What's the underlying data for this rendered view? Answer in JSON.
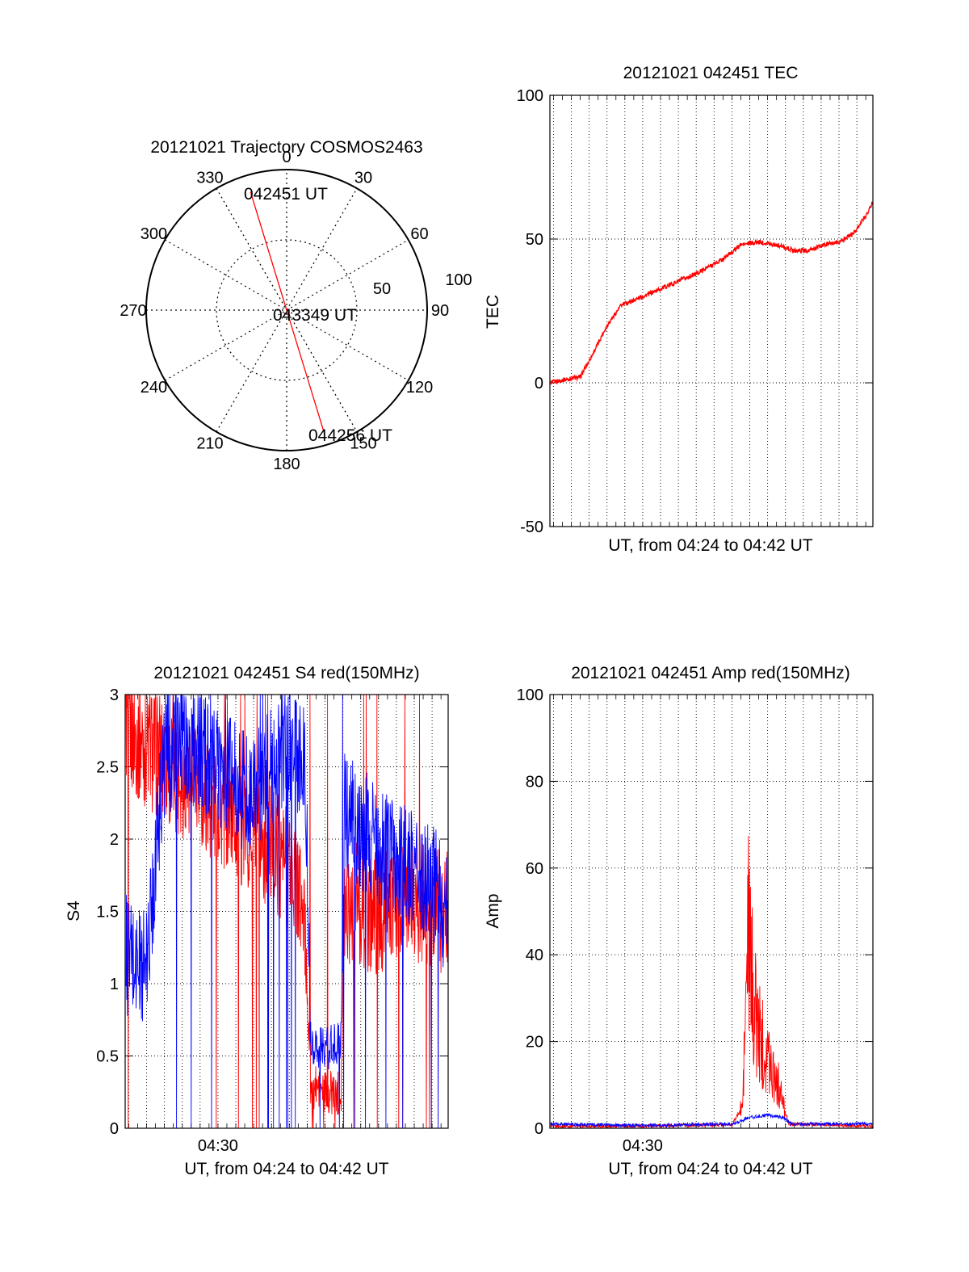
{
  "colors": {
    "red": "#ff0000",
    "blue": "#0000ff",
    "axis": "#000000"
  },
  "chart_data": [
    {
      "id": "trajectory",
      "type": "polar",
      "title": "20121021 Trajectory COSMOS2463",
      "angle_labels": [
        "0",
        "30",
        "60",
        "90",
        "120",
        "150",
        "180",
        "210",
        "240",
        "270",
        "300",
        "330"
      ],
      "radius_labels": [
        "50",
        "100"
      ],
      "rlim": [
        0,
        100
      ],
      "grid": true,
      "track": {
        "series": "red",
        "start": {
          "label": "042451 UT",
          "azimuth": 343,
          "zenith": 88
        },
        "mid": {
          "label": "043349 UT",
          "azimuth": 0,
          "zenith": 0
        },
        "end": {
          "label": "044256 UT",
          "azimuth": 163,
          "zenith": 93
        }
      }
    },
    {
      "id": "tec",
      "type": "line",
      "title": "20121021 042451 TEC",
      "ylabel": "TEC",
      "xlabel": "UT, from 04:24 to 04:42 UT",
      "ylim": [
        -50,
        100
      ],
      "yticks": [
        "100",
        "50",
        "0",
        "-50"
      ],
      "xrange_min": [
        24.8,
        42.9
      ],
      "xticklabels": [],
      "grid": true,
      "series": [
        {
          "color": "red",
          "x": [
            24.85,
            25.5,
            26.5,
            27.2,
            28.0,
            28.8,
            30.0,
            31.5,
            33.0,
            34.5,
            35.5,
            36.5,
            37.5,
            38.5,
            39.3,
            40.2,
            41.0,
            41.8,
            42.5,
            42.9
          ],
          "y": [
            0,
            1,
            2,
            10,
            20,
            27,
            30,
            34,
            38,
            43,
            48,
            49,
            48,
            46,
            46,
            48,
            49,
            52,
            58,
            63
          ]
        }
      ]
    },
    {
      "id": "s4",
      "type": "line",
      "title": "20121021 042451 S4 red(150MHz)",
      "ylabel": "S4",
      "xlabel": "UT, from 04:24 to 04:42 UT",
      "ylim": [
        0,
        3
      ],
      "yticks": [
        "3",
        "2.5",
        "2",
        "1.5",
        "1",
        "0.5",
        "0"
      ],
      "xrange_min": [
        24.8,
        42.9
      ],
      "xticklabels": [
        {
          "x": 30.0,
          "label": "04:30"
        }
      ],
      "grid": true,
      "series": [
        {
          "color": "red",
          "x": [
            24.85,
            25.5,
            26.5,
            27.5,
            28.5,
            29.5,
            30.5,
            31.5,
            32.5,
            33.5,
            34.5,
            34.9,
            35.2,
            36.0,
            36.9,
            37.1,
            38.0,
            39.0,
            40.0,
            41.0,
            42.0,
            42.9
          ],
          "y": [
            2.8,
            2.7,
            2.6,
            2.5,
            2.4,
            2.3,
            2.2,
            2.1,
            2.0,
            1.9,
            1.7,
            1.3,
            0.3,
            0.25,
            0.25,
            1.6,
            1.55,
            1.5,
            1.55,
            1.6,
            1.55,
            1.5
          ]
        },
        {
          "color": "blue",
          "x": [
            24.85,
            25.3,
            26.0,
            26.5,
            27.0,
            28.0,
            29.0,
            30.0,
            31.0,
            32.0,
            33.0,
            34.0,
            34.9,
            35.2,
            36.0,
            36.9,
            37.1,
            38.0,
            39.0,
            40.0,
            41.0,
            42.0,
            42.9
          ],
          "y": [
            1.2,
            1.15,
            1.1,
            1.9,
            2.6,
            2.7,
            2.6,
            2.5,
            2.4,
            2.3,
            2.5,
            2.7,
            2.5,
            0.6,
            0.55,
            0.6,
            2.2,
            2.1,
            2.0,
            1.9,
            1.8,
            1.7,
            1.5
          ]
        }
      ]
    },
    {
      "id": "amp",
      "type": "line",
      "title": "20121021 042451 Amp red(150MHz)",
      "ylabel": "Amp",
      "xlabel": "UT, from 04:24 to 04:42 UT",
      "ylim": [
        0,
        100
      ],
      "yticks": [
        "100",
        "80",
        "60",
        "40",
        "20",
        "0"
      ],
      "xrange_min": [
        24.8,
        42.9
      ],
      "xticklabels": [
        {
          "x": 30.0,
          "label": "04:30"
        }
      ],
      "grid": true,
      "series": [
        {
          "color": "red",
          "x": [
            24.85,
            30.0,
            35.0,
            35.6,
            35.9,
            36.2,
            36.5,
            36.9,
            37.3,
            37.6,
            37.9,
            38.2,
            42.9
          ],
          "y": [
            0.5,
            0.5,
            0.8,
            5,
            45,
            30,
            22,
            18,
            14,
            10,
            5,
            1,
            0.5
          ]
        },
        {
          "color": "blue",
          "x": [
            24.85,
            30.0,
            35.0,
            36.0,
            37.0,
            37.9,
            38.3,
            42.9
          ],
          "y": [
            1.0,
            0.6,
            1.0,
            2.5,
            3.0,
            2.5,
            1.0,
            1.0
          ]
        }
      ]
    }
  ]
}
